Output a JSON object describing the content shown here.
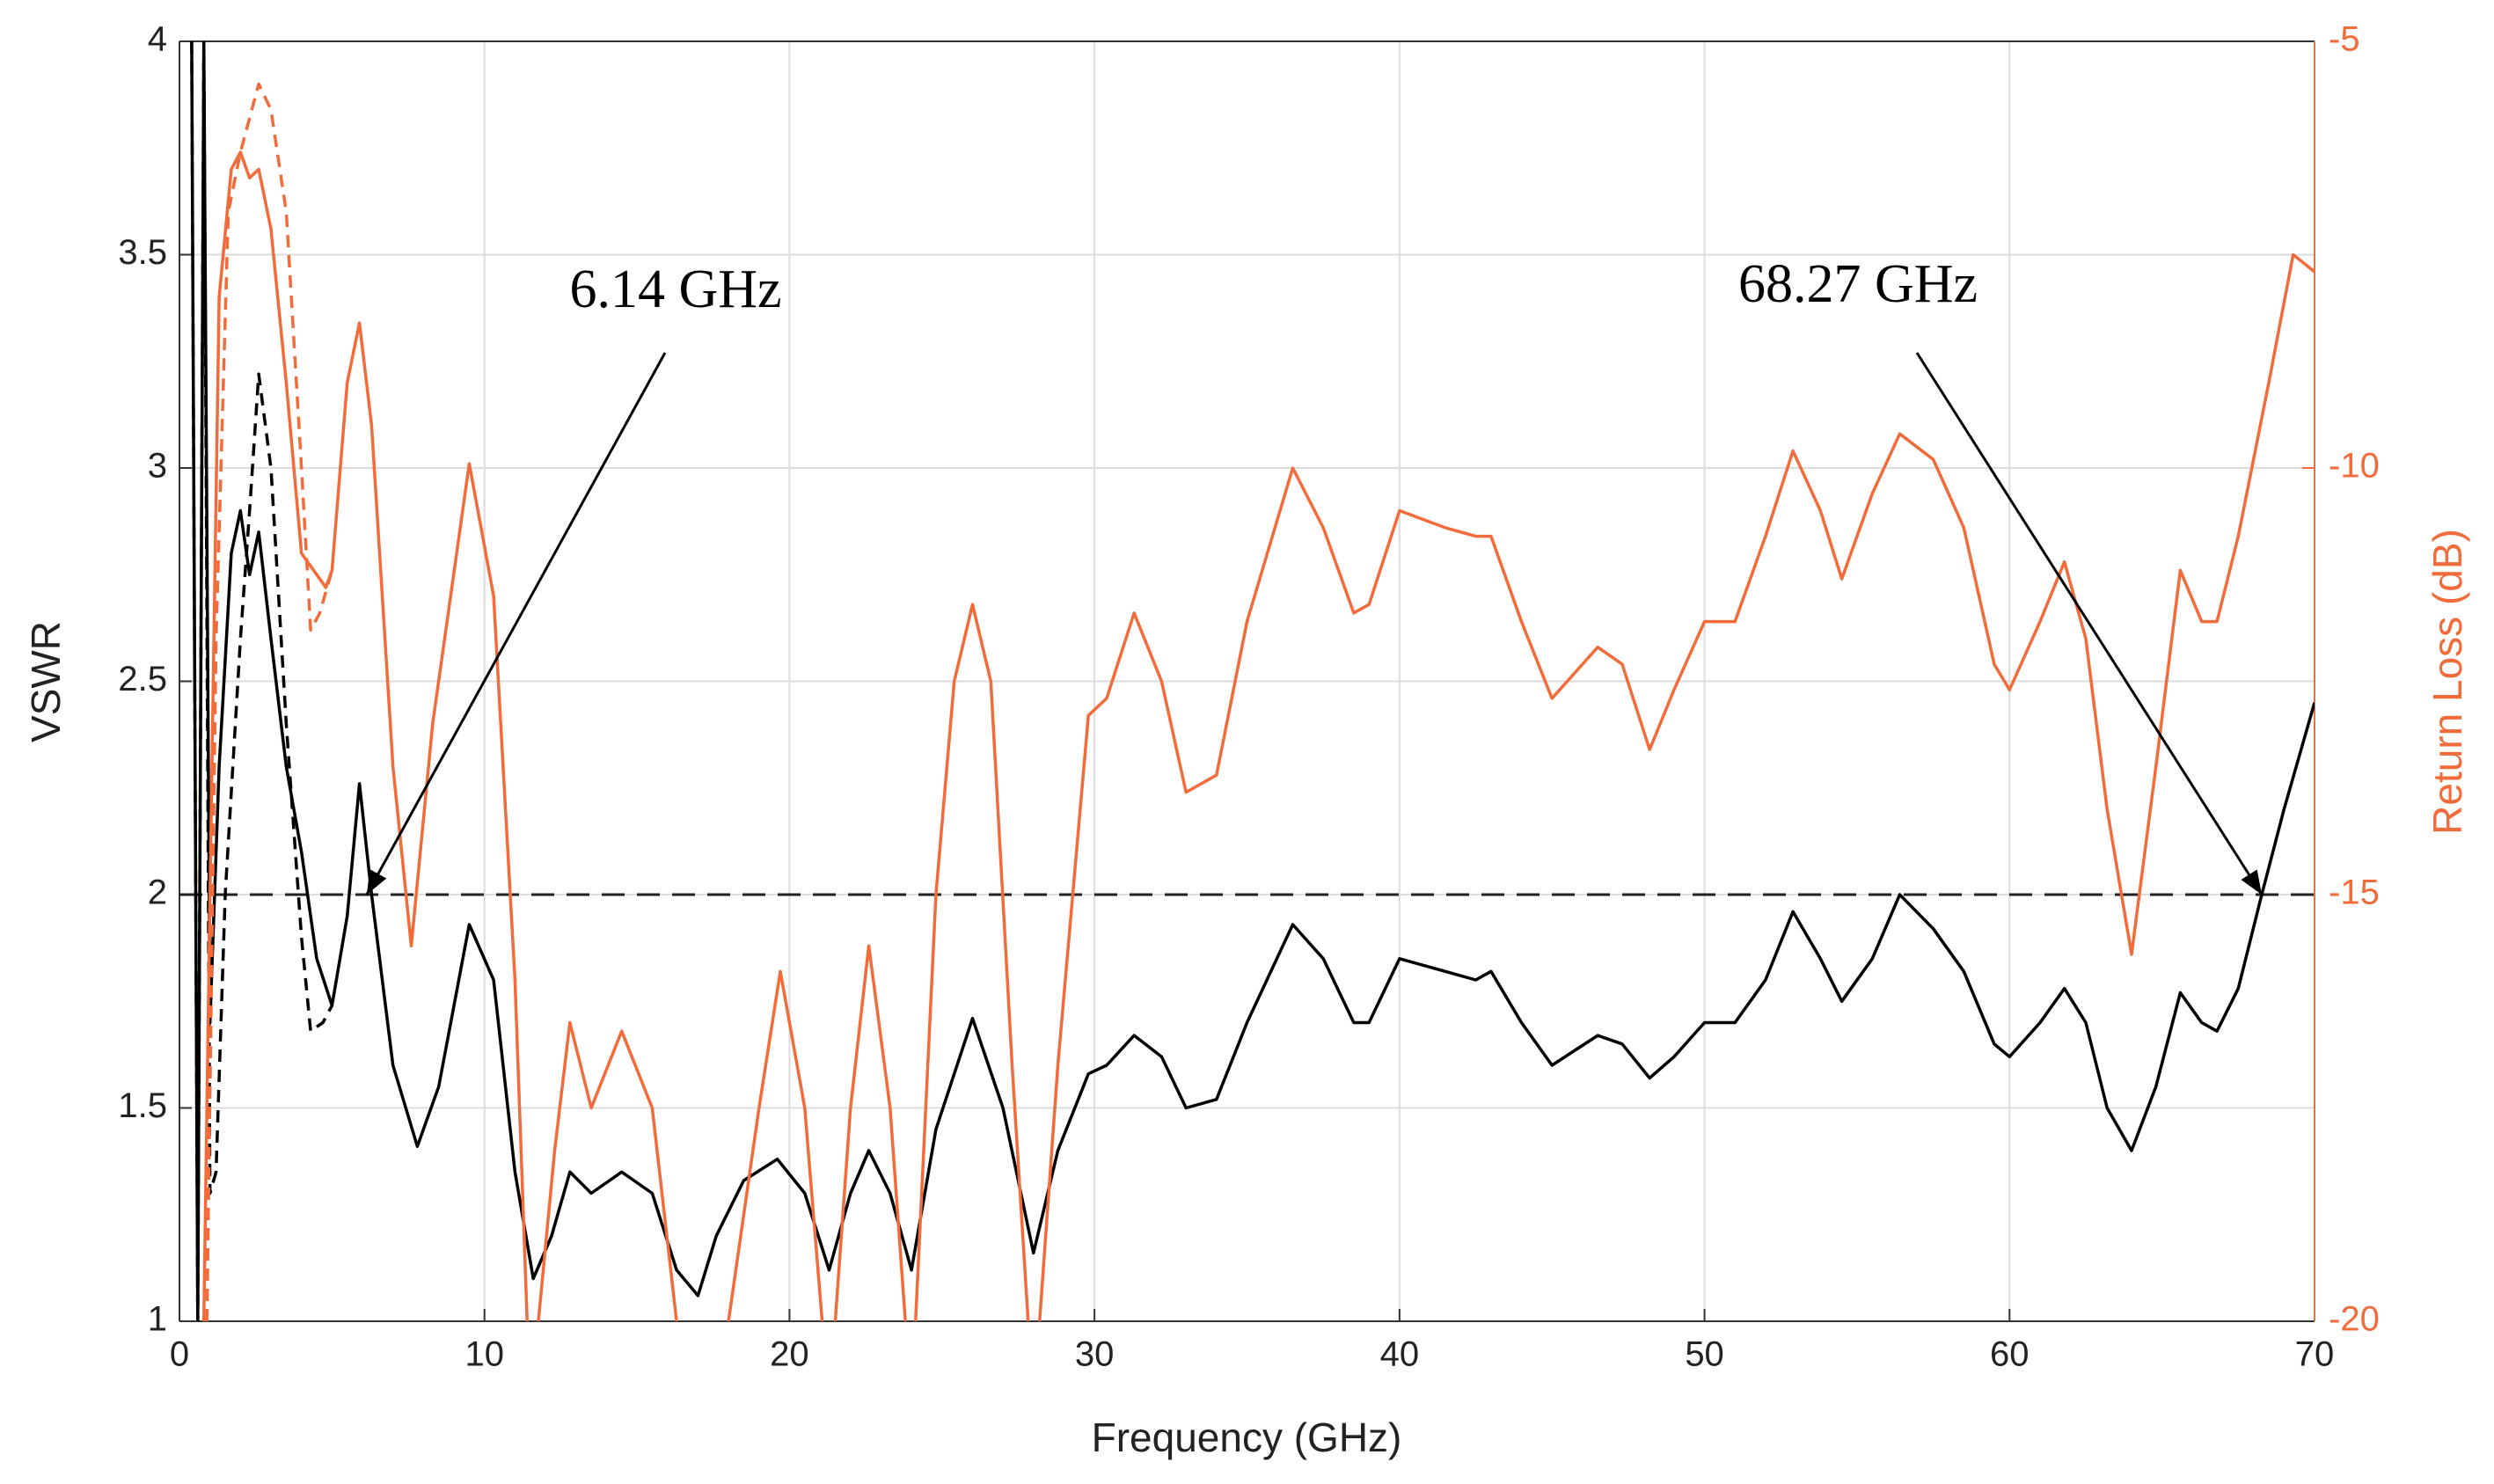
{
  "chart_data": {
    "type": "line",
    "xlabel": "Frequency (GHz)",
    "ylabel": "VSWR",
    "y2label": "Return Loss (dB)",
    "xlim": [
      0,
      70
    ],
    "xticks": [
      0,
      10,
      20,
      30,
      40,
      50,
      60,
      70
    ],
    "ylim": [
      1,
      4
    ],
    "yticks": [
      1,
      1.5,
      2,
      2.5,
      3,
      3.5,
      4
    ],
    "y2lim": [
      -20,
      -5
    ],
    "y2ticks": [
      -20,
      -15,
      -10,
      -5
    ],
    "grid": true,
    "reference_line": 2,
    "annotations": [
      {
        "text": "6.14 GHz",
        "x": 6.14,
        "y": 2
      },
      {
        "text": "68.27 GHz",
        "x": 68.27,
        "y": 2
      }
    ],
    "series": [
      {
        "color": "#000000",
        "dash": false,
        "x": [
          0.4,
          0.6,
          0.8,
          1.0,
          1.3,
          1.7,
          2.0,
          2.3,
          2.6,
          3.0,
          3.5,
          4.0,
          4.5,
          5.0,
          5.5,
          5.9,
          6.3,
          7.0,
          7.8,
          8.5,
          9.5,
          10.3,
          11.0,
          11.6,
          12.2,
          12.8,
          13.5,
          14.5,
          15.5,
          16.3,
          17.0,
          17.6,
          18.5,
          19.6,
          20.5,
          21.3,
          22.0,
          22.6,
          23.3,
          24.0,
          24.8,
          26.0,
          27.0,
          28.0,
          28.8,
          29.8,
          30.4,
          31.3,
          32.2,
          33.0,
          34.0,
          35.0,
          36.5,
          37.5,
          38.5,
          39.0,
          40.0,
          41.5,
          42.5,
          43.0,
          44.0,
          45.0,
          46.5,
          47.3,
          48.2,
          49.0,
          50.0,
          51.0,
          52.0,
          52.9,
          53.8,
          54.5,
          55.5,
          56.4,
          57.5,
          58.5,
          59.5,
          60.0,
          61.0,
          61.8,
          62.5,
          63.2,
          64.0,
          64.8,
          65.6,
          66.3,
          66.8,
          67.5,
          68.27,
          69.0,
          70.0
        ],
        "values": [
          4,
          1,
          4,
          1.7,
          2.3,
          2.8,
          2.9,
          2.75,
          2.85,
          2.6,
          2.3,
          2.1,
          1.85,
          1.74,
          1.95,
          2.26,
          2.0,
          1.6,
          1.41,
          1.55,
          1.93,
          1.8,
          1.35,
          1.1,
          1.2,
          1.35,
          1.3,
          1.35,
          1.3,
          1.12,
          1.06,
          1.2,
          1.33,
          1.38,
          1.3,
          1.12,
          1.3,
          1.4,
          1.3,
          1.12,
          1.45,
          1.71,
          1.5,
          1.16,
          1.4,
          1.58,
          1.6,
          1.67,
          1.62,
          1.5,
          1.52,
          1.7,
          1.93,
          1.85,
          1.7,
          1.7,
          1.85,
          1.82,
          1.8,
          1.82,
          1.7,
          1.6,
          1.67,
          1.65,
          1.57,
          1.62,
          1.7,
          1.7,
          1.8,
          1.96,
          1.85,
          1.75,
          1.85,
          2.0,
          1.92,
          1.82,
          1.65,
          1.62,
          1.7,
          1.78,
          1.7,
          1.5,
          1.4,
          1.55,
          1.77,
          1.7,
          1.68,
          1.78,
          2.0,
          2.2,
          2.45
        ]
      },
      {
        "color": "#000000",
        "dash": true,
        "x": [
          0.4,
          0.6,
          0.8,
          1.0,
          1.2,
          1.5,
          2.0,
          2.3,
          2.6,
          3.0,
          3.5,
          4.0,
          4.3,
          4.7,
          5.0
        ],
        "values": [
          4,
          1,
          4,
          1.3,
          1.35,
          2.0,
          2.6,
          2.9,
          3.22,
          3.0,
          2.4,
          1.9,
          1.68,
          1.7,
          1.74
        ]
      },
      {
        "color": "#f26b3a",
        "dash": false,
        "axis": "y2",
        "x": [
          0.8,
          1.0,
          1.3,
          1.7,
          2.0,
          2.3,
          2.6,
          3.0,
          3.5,
          4.0,
          4.8,
          5.0,
          5.5,
          5.9,
          6.3,
          7.0,
          7.6,
          8.3,
          9.5,
          10.3,
          11.0,
          11.5,
          12.3,
          12.8,
          13.5,
          14.5,
          15.5,
          16.3,
          17.0,
          18.0,
          19.0,
          19.7,
          20.5,
          21.3,
          22.0,
          22.6,
          23.3,
          24.0,
          24.8,
          25.4,
          26.0,
          26.6,
          27.3,
          28.0,
          28.8,
          29.8,
          30.4,
          31.3,
          32.2,
          33.0,
          34.0,
          35.0,
          36.5,
          37.5,
          38.5,
          39.0,
          40.0,
          41.5,
          42.5,
          43.0,
          44.0,
          45.0,
          46.5,
          47.3,
          48.2,
          49.0,
          50.0,
          51.0,
          52.0,
          52.9,
          53.8,
          54.5,
          55.5,
          56.4,
          57.5,
          58.5,
          59.5,
          60.0,
          61.0,
          61.8,
          62.5,
          63.2,
          64.0,
          64.8,
          65.6,
          66.3,
          66.8,
          67.5,
          68.5,
          69.3,
          70.0
        ],
        "values": [
          -20,
          -15,
          -8,
          -6.5,
          -6.3,
          -6.6,
          -6.5,
          -7.2,
          -9,
          -11,
          -11.4,
          -11.2,
          -9,
          -8.3,
          -9.5,
          -13.5,
          -15.6,
          -13,
          -9.95,
          -11.5,
          -16,
          -21,
          -18,
          -16.5,
          -17.5,
          -16.6,
          -17.5,
          -20,
          -22,
          -20,
          -17.5,
          -15.9,
          -17.5,
          -21,
          -17.5,
          -15.6,
          -17.5,
          -21,
          -15,
          -12.5,
          -11.6,
          -12.5,
          -17,
          -21,
          -17,
          -12.9,
          -12.7,
          -11.7,
          -12.5,
          -13.8,
          -13.6,
          -11.8,
          -10.0,
          -10.7,
          -11.7,
          -11.6,
          -10.5,
          -10.7,
          -10.8,
          -10.8,
          -11.8,
          -12.7,
          -12.1,
          -12.3,
          -13.3,
          -12.6,
          -11.8,
          -11.8,
          -10.8,
          -9.8,
          -10.5,
          -11.3,
          -10.3,
          -9.6,
          -9.9,
          -10.7,
          -12.3,
          -12.6,
          -11.8,
          -11.1,
          -12,
          -14,
          -15.7,
          -13.5,
          -11.2,
          -11.8,
          -11.8,
          -10.8,
          -9,
          -7.5,
          -7.7
        ]
      },
      {
        "color": "#f26b3a",
        "dash": true,
        "axis": "y2",
        "x": [
          0.9,
          1.2,
          1.6,
          2.0,
          2.6,
          3.0,
          3.5,
          4.0,
          4.3,
          4.6,
          5.0
        ],
        "values": [
          -20,
          -12,
          -7,
          -6.3,
          -5.5,
          -5.8,
          -7,
          -10,
          -11.9,
          -11.7,
          -11.2
        ]
      }
    ]
  }
}
